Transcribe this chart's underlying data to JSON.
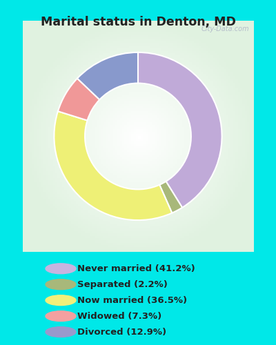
{
  "title": "Marital status in Denton, MD",
  "slices": [
    41.2,
    2.2,
    36.5,
    7.3,
    12.9
  ],
  "labels": [
    "Never married (41.2%)",
    "Separated (2.2%)",
    "Now married (36.5%)",
    "Widowed (7.3%)",
    "Divorced (12.9%)"
  ],
  "colors": [
    "#c0aad8",
    "#a8b87a",
    "#eef076",
    "#f09898",
    "#8899cc"
  ],
  "legend_colors": [
    "#c8b4e0",
    "#a8b87a",
    "#f2f07a",
    "#f4a0a0",
    "#9999cc"
  ],
  "bg_outer": "#00e8e8",
  "bg_chart_color": "#e8f5e8",
  "title_color": "#222222",
  "donut_width": 0.36,
  "start_angle": 90,
  "watermark": "City-Data.com"
}
